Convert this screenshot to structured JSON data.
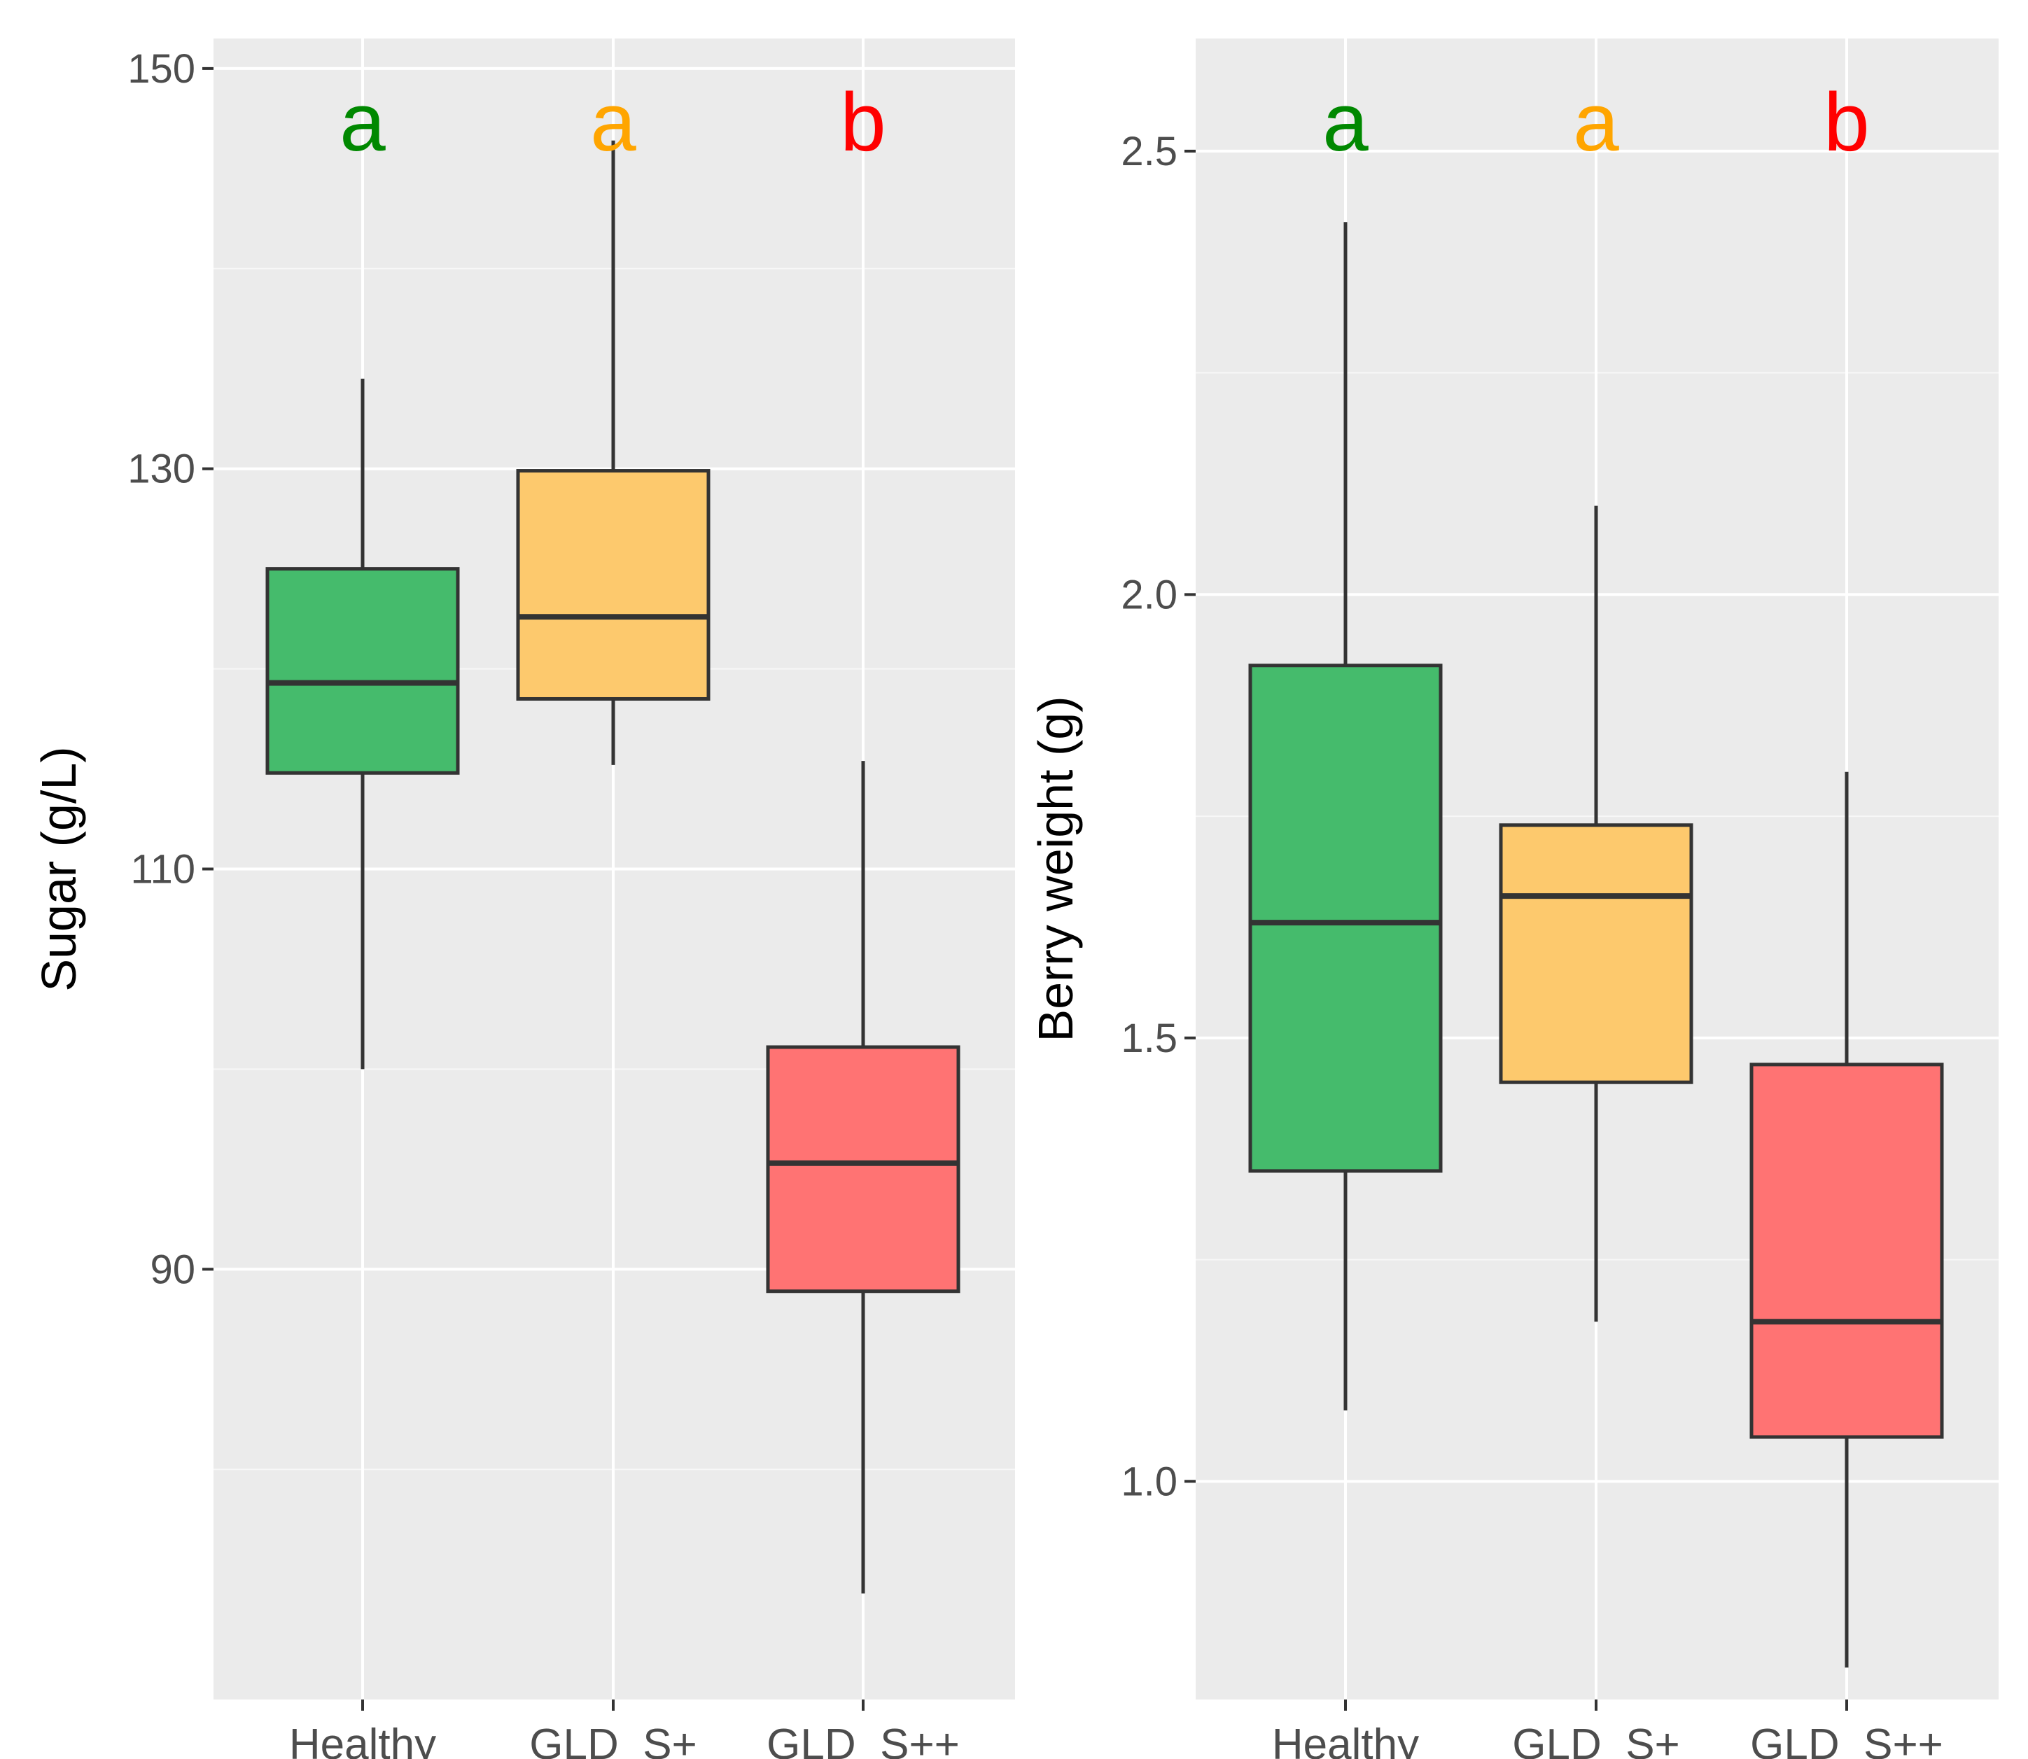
{
  "chart_data": [
    {
      "type": "box",
      "title": "",
      "xlabel": "",
      "ylabel": "Sugar (g/L)",
      "ylim": [
        68.5,
        151.5
      ],
      "yticks": [
        90,
        110,
        130,
        150
      ],
      "yticklabels": [
        "90",
        "110",
        "130",
        "150"
      ],
      "categories": [
        "Healthy",
        "GLD_S+",
        "GLD_S++"
      ],
      "boxes": [
        {
          "category": "Healthy",
          "whisker_low": 100.0,
          "q1": 114.8,
          "median": 119.3,
          "q3": 125.0,
          "whisker_high": 134.5,
          "fill": "#45BB6C"
        },
        {
          "category": "GLD_S+",
          "whisker_low": 115.2,
          "q1": 118.5,
          "median": 122.6,
          "q3": 129.9,
          "whisker_high": 146.4,
          "fill": "#FDC96D"
        },
        {
          "category": "GLD_S++",
          "whisker_low": 73.8,
          "q1": 88.9,
          "median": 95.3,
          "q3": 101.1,
          "whisker_high": 115.4,
          "fill": "#FF7373"
        }
      ],
      "significance": [
        {
          "category": "Healthy",
          "letter": "a",
          "color": "#008800"
        },
        {
          "category": "GLD_S+",
          "letter": "a",
          "color": "#FFA500"
        },
        {
          "category": "GLD_S++",
          "letter": "b",
          "color": "#FF0000"
        }
      ]
    },
    {
      "type": "box",
      "title": "",
      "xlabel": "",
      "ylabel": "Berry weight (g)",
      "ylim": [
        0.754,
        2.627
      ],
      "yticks": [
        1.0,
        1.5,
        2.0,
        2.5
      ],
      "yticklabels": [
        "1.0",
        "1.5",
        "2.0",
        "2.5"
      ],
      "categories": [
        "Healthy",
        "GLD_S+",
        "GLD_S++"
      ],
      "boxes": [
        {
          "category": "Healthy",
          "whisker_low": 1.08,
          "q1": 1.35,
          "median": 1.63,
          "q3": 1.92,
          "whisker_high": 2.42,
          "fill": "#45BB6C"
        },
        {
          "category": "GLD_S+",
          "whisker_low": 1.18,
          "q1": 1.45,
          "median": 1.66,
          "q3": 1.74,
          "whisker_high": 2.1,
          "fill": "#FDC96D"
        },
        {
          "category": "GLD_S++",
          "whisker_low": 0.79,
          "q1": 1.05,
          "median": 1.18,
          "q3": 1.47,
          "whisker_high": 1.8,
          "fill": "#FF7373"
        }
      ],
      "significance": [
        {
          "category": "Healthy",
          "letter": "a",
          "color": "#008800"
        },
        {
          "category": "GLD_S+",
          "letter": "a",
          "color": "#FFA500"
        },
        {
          "category": "GLD_S++",
          "letter": "b",
          "color": "#FF0000"
        }
      ]
    }
  ],
  "style": {
    "panel_bg": "#EBEBEB",
    "grid_major": "#FFFFFF",
    "grid_minor": "#F7F7F7",
    "box_stroke": "#333333",
    "tick_color": "#333333"
  }
}
